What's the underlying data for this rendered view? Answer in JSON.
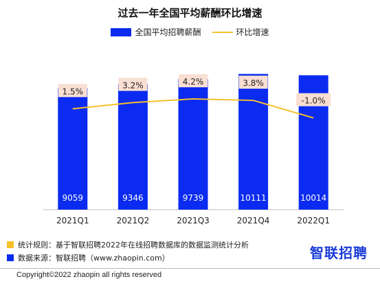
{
  "colors": {
    "bar": "#0b2bf0",
    "line": "#f6c12b",
    "label_bg": "#f9ded2",
    "note_icon_1": "#f6c12b",
    "note_icon_2": "#0b2bf0",
    "logo": "#1a3bd9"
  },
  "chart_data": {
    "type": "bar",
    "title": "过去一年全国平均薪酬环比增速",
    "categories": [
      "2021Q1",
      "2021Q2",
      "2021Q3",
      "2021Q4",
      "2022Q1"
    ],
    "series": [
      {
        "name": "全国平均招聘薪酬",
        "type": "bar",
        "values": [
          9059,
          9346,
          9739,
          10111,
          10014
        ]
      },
      {
        "name": "环比增速",
        "type": "line",
        "values": [
          1.5,
          3.2,
          4.2,
          3.8,
          -1.0
        ],
        "labels": [
          "1.5%",
          "3.2%",
          "4.2%",
          "3.8%",
          "-1.0%"
        ]
      }
    ],
    "ylim_bar": [
      0,
      10500
    ],
    "legend_position": "top",
    "grid": false
  },
  "notes": {
    "rule": "统计规则：基于智联招聘2022年在线招聘数据库的数据监测统计分析",
    "source": "数据来源：智联招聘（www.zhaopin.com）"
  },
  "logo_text": "智联招聘",
  "copyright": "Copyright©2022 zhaopin all rights reserved"
}
